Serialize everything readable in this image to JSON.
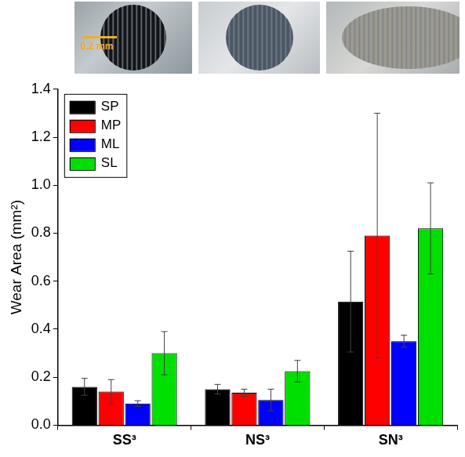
{
  "images": {
    "scale_bar": "0.2 mm"
  },
  "chart_data": {
    "type": "bar",
    "categories": [
      "SS³",
      "NS³",
      "SN³"
    ],
    "series": [
      {
        "name": "SP",
        "color": "#000000",
        "values": [
          0.16,
          0.15,
          0.515
        ],
        "errors": [
          0.035,
          0.02,
          0.21
        ]
      },
      {
        "name": "MP",
        "color": "#ff0000",
        "values": [
          0.14,
          0.135,
          0.79
        ],
        "errors": [
          0.05,
          0.015,
          0.51
        ]
      },
      {
        "name": "ML",
        "color": "#0000ff",
        "values": [
          0.09,
          0.105,
          0.35
        ],
        "errors": [
          0.012,
          0.045,
          0.025
        ]
      },
      {
        "name": "SL",
        "color": "#00e000",
        "values": [
          0.3,
          0.225,
          0.82
        ],
        "errors": [
          0.09,
          0.045,
          0.19
        ]
      }
    ],
    "y_label": "Wear Area (mm²)",
    "ylim": [
      0,
      1.4
    ],
    "yticks": [
      {
        "value": 0,
        "label": "0.0"
      },
      0.2,
      0.4,
      0.6,
      0.8,
      {
        "value": 1,
        "label": "1.0"
      },
      1.2,
      1.4
    ],
    "legend": "upper left",
    "grid": false
  }
}
